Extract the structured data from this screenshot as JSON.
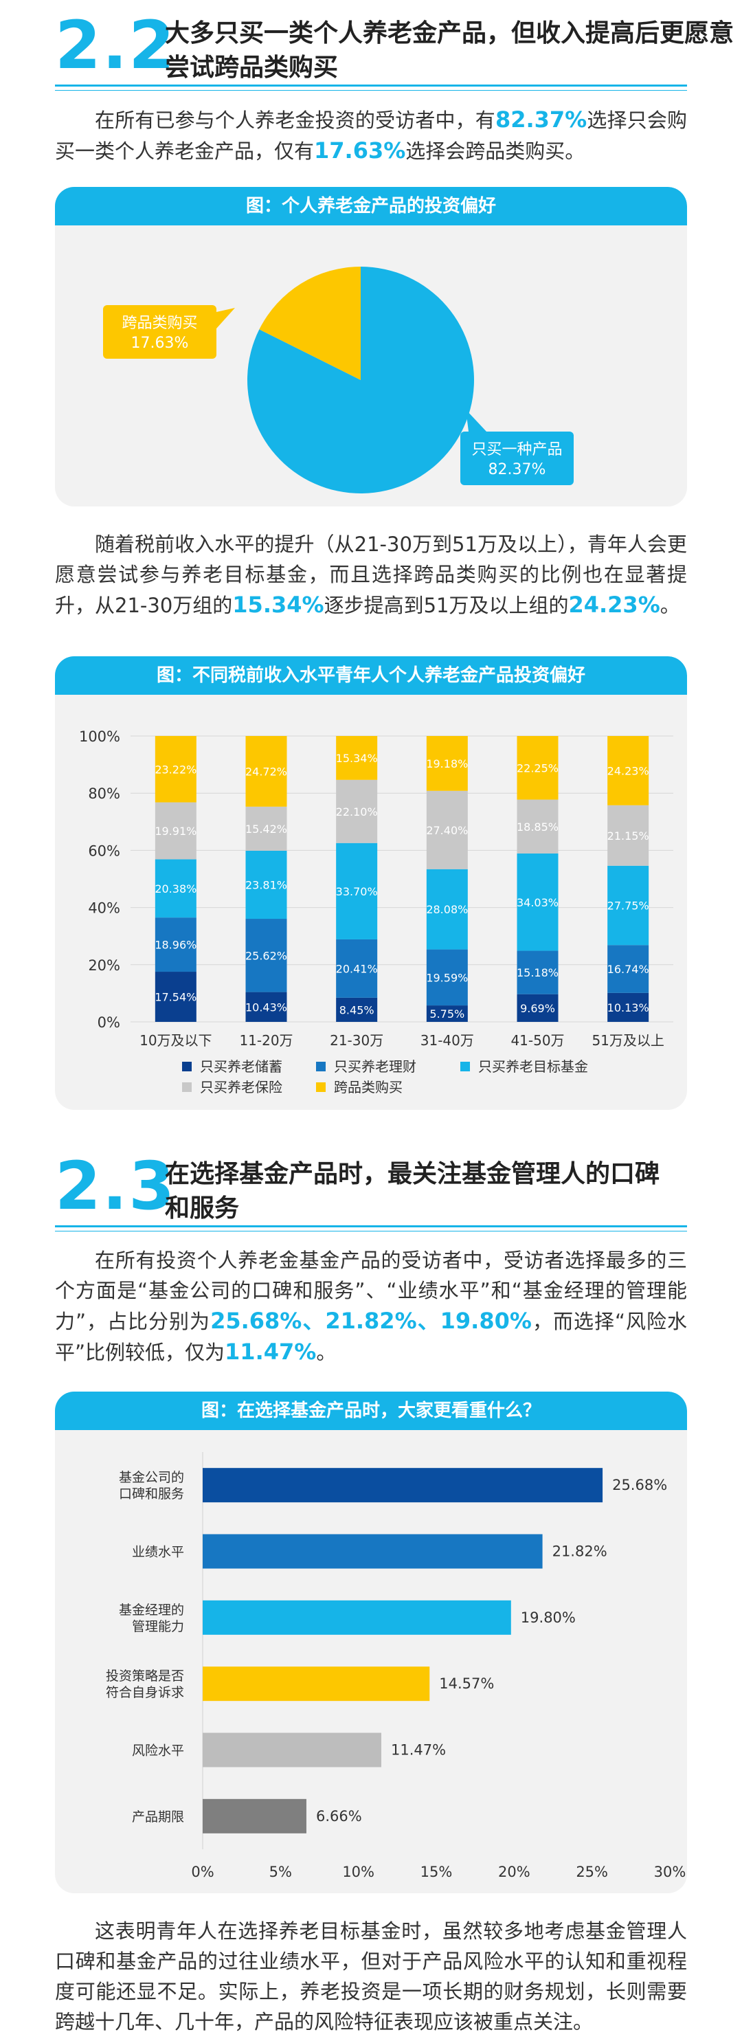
{
  "sec22": {
    "num": "2.2",
    "title": "大多只买一类个人养老金产品，但收入提高后更愿意尝试跨品类购买",
    "p1": {
      "a": "在所有已参与个人养老金投资的受访者中，有",
      "h1": "82.37%",
      "b": "选择只会购买一类个人养老金产品，仅有",
      "h2": "17.63%",
      "c": "选择会跨品类购买。"
    },
    "p2": {
      "a": "随着税前收入水平的提升（从21-30万到51万及以上），青年人会更愿意尝试参与养老目标基金，而且选择跨品类购买的比例也在显著提升，从21-30万组的",
      "h1": "15.34%",
      "b": "逐步提高到51万及以上组的",
      "h2": "24.23%",
      "c": "。"
    }
  },
  "sec23": {
    "num": "2.3",
    "title": "在选择基金产品时，最关注基金管理人的口碑和服务",
    "p1": {
      "a": "在所有投资个人养老金基金产品的受访者中，受访者选择最多的三个方面是“基金公司的口碑和服务”、“业绩水平”和“基金经理的管理能力”，占比分别为",
      "h1": "25.68%、21.82%、19.80%",
      "b": "，而选择“风险水平”比例较低，仅为",
      "h2": "11.47%",
      "c": "。"
    },
    "p2": "这表明青年人在选择养老目标基金时，虽然较多地考虑基金管理人口碑和基金产品的过往业绩水平，但对于产品风险水平的认知和重视程度可能还显不足。实际上，养老投资是一项长期的财务规划，长则需要跨越十几年、几十年，产品的风险特征表现应该被重点关注。"
  },
  "chart_data": [
    {
      "type": "pie",
      "title": "图：个人养老金产品的投资偏好",
      "labels": [
        "只买一种产品",
        "跨品类购买"
      ],
      "values": [
        82.37,
        17.63
      ],
      "value_labels": [
        "82.37%",
        "17.63%"
      ],
      "colors": [
        "#16b4e8",
        "#fdc700"
      ]
    },
    {
      "type": "bar",
      "stacked": true,
      "title": "图：不同税前收入水平青年人个人养老金产品投资偏好",
      "categories": [
        "10万及以下",
        "11-20万",
        "21-30万",
        "31-40万",
        "41-50万",
        "51万及以上"
      ],
      "ylim": [
        0,
        100
      ],
      "yticks": [
        "0%",
        "20%",
        "40%",
        "60%",
        "80%",
        "100%"
      ],
      "series": [
        {
          "name": "只买养老储蓄",
          "color": "#0a3f8f",
          "values": [
            17.54,
            10.43,
            8.45,
            5.75,
            9.69,
            10.13
          ],
          "labels": [
            "17.54%",
            "10.43%",
            "8.45%",
            "5.75%",
            "9.69%",
            "10.13%"
          ]
        },
        {
          "name": "只买养老理财",
          "color": "#1777c2",
          "values": [
            18.96,
            25.62,
            20.41,
            19.59,
            15.18,
            16.74
          ],
          "labels": [
            "18.96%",
            "25.62%",
            "20.41%",
            "19.59%",
            "15.18%",
            "16.74%"
          ]
        },
        {
          "name": "只买养老目标基金",
          "color": "#16b4e8",
          "values": [
            20.38,
            23.81,
            33.7,
            28.08,
            34.03,
            27.75
          ],
          "labels": [
            "20.38%",
            "23.81%",
            "33.70%",
            "28.08%",
            "34.03%",
            "27.75%"
          ]
        },
        {
          "name": "只买养老保险",
          "color": "#c8c8c8",
          "values": [
            19.91,
            15.42,
            22.1,
            27.4,
            18.85,
            21.15
          ],
          "labels": [
            "19.91%",
            "15.42%",
            "22.10%",
            "27.40%",
            "18.85%",
            "21.15%"
          ]
        },
        {
          "name": "跨品类购买",
          "color": "#fdc700",
          "values": [
            23.22,
            24.72,
            15.34,
            19.18,
            22.25,
            24.23
          ],
          "labels": [
            "23.22%",
            "24.72%",
            "15.34%",
            "19.18%",
            "22.25%",
            "24.23%"
          ]
        }
      ]
    },
    {
      "type": "bar",
      "orientation": "horizontal",
      "title": "图：在选择基金产品时，大家更看重什么？",
      "categories": [
        [
          "基金公司的",
          "口碑和服务"
        ],
        [
          "业绩水平"
        ],
        [
          "基金经理的",
          "管理能力"
        ],
        [
          "投资策略是否",
          "符合自身诉求"
        ],
        [
          "风险水平"
        ],
        [
          "产品期限"
        ]
      ],
      "values": [
        25.68,
        21.82,
        19.8,
        14.57,
        11.47,
        6.66
      ],
      "value_labels": [
        "25.68%",
        "21.82%",
        "19.80%",
        "14.57%",
        "11.47%",
        "6.66%"
      ],
      "colors": [
        "#0a4ea0",
        "#1777c2",
        "#16b4e8",
        "#fdc700",
        "#bdbdbd",
        "#7f7f7f"
      ],
      "xlim": [
        0,
        30
      ],
      "xticks": [
        "0%",
        "5%",
        "10%",
        "15%",
        "20%",
        "25%",
        "30%"
      ]
    }
  ]
}
